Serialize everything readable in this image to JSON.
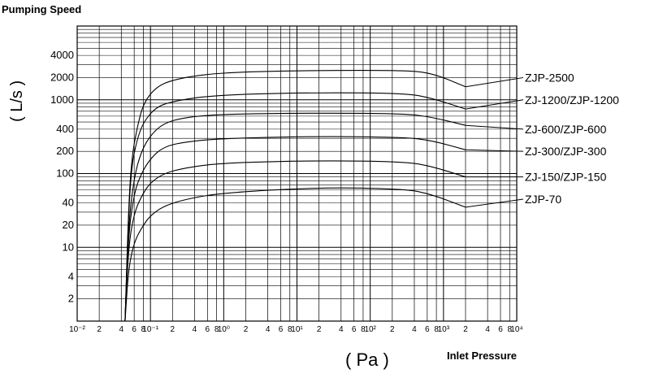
{
  "chart_data": {
    "type": "line",
    "title": "Pumping Speed",
    "ylabel": "( L/s )",
    "xlabel_unit": "( Pa )",
    "xlabel": "Inlet Pressure",
    "xscale": "log",
    "yscale": "log",
    "xlim": [
      0.01,
      10000
    ],
    "ylim": [
      1,
      10000
    ],
    "grid": true,
    "y_ticks": [
      {
        "value": 2,
        "label": "2"
      },
      {
        "value": 4,
        "label": "4"
      },
      {
        "value": 10,
        "label": "10"
      },
      {
        "value": 20,
        "label": "20"
      },
      {
        "value": 40,
        "label": "40"
      },
      {
        "value": 100,
        "label": "100"
      },
      {
        "value": 200,
        "label": "200"
      },
      {
        "value": 400,
        "label": "400"
      },
      {
        "value": 1000,
        "label": "1000"
      },
      {
        "value": 2000,
        "label": "2000"
      },
      {
        "value": 4000,
        "label": "4000"
      }
    ],
    "x_ticks": [
      {
        "value": 0.01,
        "label": "10⁻²"
      },
      {
        "value": 0.02,
        "label": "2"
      },
      {
        "value": 0.04,
        "label": "4"
      },
      {
        "value": 0.06,
        "label": "6"
      },
      {
        "value": 0.08,
        "label": "8"
      },
      {
        "value": 0.1,
        "label": "10⁻¹"
      },
      {
        "value": 0.2,
        "label": "2"
      },
      {
        "value": 0.4,
        "label": "4"
      },
      {
        "value": 0.6,
        "label": "6"
      },
      {
        "value": 0.8,
        "label": "8"
      },
      {
        "value": 1,
        "label": "10⁰"
      },
      {
        "value": 2,
        "label": "2"
      },
      {
        "value": 4,
        "label": "4"
      },
      {
        "value": 6,
        "label": "6"
      },
      {
        "value": 8,
        "label": "8"
      },
      {
        "value": 10,
        "label": "10¹"
      },
      {
        "value": 20,
        "label": "2"
      },
      {
        "value": 40,
        "label": "4"
      },
      {
        "value": 60,
        "label": "6"
      },
      {
        "value": 80,
        "label": "8"
      },
      {
        "value": 100,
        "label": "10²"
      },
      {
        "value": 200,
        "label": "2"
      },
      {
        "value": 400,
        "label": "4"
      },
      {
        "value": 600,
        "label": "6"
      },
      {
        "value": 800,
        "label": "8"
      },
      {
        "value": 1000,
        "label": "10³"
      },
      {
        "value": 2000,
        "label": "2"
      },
      {
        "value": 4000,
        "label": "4"
      },
      {
        "value": 6000,
        "label": "6"
      },
      {
        "value": 8000,
        "label": "8"
      },
      {
        "value": 10000,
        "label": "10⁴"
      }
    ],
    "series": [
      {
        "name": "ZJP-2500",
        "label_y": 2000,
        "points": [
          [
            0.045,
            1
          ],
          [
            0.05,
            30
          ],
          [
            0.055,
            150
          ],
          [
            0.065,
            400
          ],
          [
            0.08,
            900
          ],
          [
            0.12,
            1500
          ],
          [
            0.2,
            1850
          ],
          [
            0.5,
            2200
          ],
          [
            2,
            2400
          ],
          [
            20,
            2500
          ],
          [
            300,
            2500
          ],
          [
            700,
            2300
          ],
          [
            2000,
            1500
          ]
        ]
      },
      {
        "name": "ZJ-1200/ZJP-1200",
        "label_y": 1000,
        "points": [
          [
            0.045,
            1
          ],
          [
            0.05,
            25
          ],
          [
            0.055,
            120
          ],
          [
            0.065,
            280
          ],
          [
            0.08,
            500
          ],
          [
            0.12,
            800
          ],
          [
            0.2,
            950
          ],
          [
            0.5,
            1100
          ],
          [
            2,
            1200
          ],
          [
            20,
            1250
          ],
          [
            300,
            1230
          ],
          [
            700,
            1050
          ],
          [
            2000,
            750
          ]
        ]
      },
      {
        "name": "ZJ-600/ZJP-600",
        "label_y": 400,
        "points": [
          [
            0.045,
            1
          ],
          [
            0.05,
            20
          ],
          [
            0.06,
            90
          ],
          [
            0.075,
            200
          ],
          [
            0.1,
            330
          ],
          [
            0.15,
            480
          ],
          [
            0.3,
            580
          ],
          [
            1,
            640
          ],
          [
            20,
            660
          ],
          [
            300,
            650
          ],
          [
            700,
            580
          ],
          [
            2000,
            450
          ]
        ]
      },
      {
        "name": "ZJ-300/ZJP-300",
        "label_y": 200,
        "points": [
          [
            0.045,
            1
          ],
          [
            0.05,
            15
          ],
          [
            0.06,
            55
          ],
          [
            0.075,
            100
          ],
          [
            0.1,
            160
          ],
          [
            0.15,
            230
          ],
          [
            0.3,
            270
          ],
          [
            1,
            300
          ],
          [
            20,
            320
          ],
          [
            300,
            310
          ],
          [
            700,
            280
          ],
          [
            2000,
            210
          ]
        ]
      },
      {
        "name": "ZJ-150/ZJP-150",
        "label_y": 90,
        "points": [
          [
            0.045,
            1
          ],
          [
            0.05,
            10
          ],
          [
            0.06,
            30
          ],
          [
            0.08,
            55
          ],
          [
            0.1,
            75
          ],
          [
            0.15,
            100
          ],
          [
            0.3,
            120
          ],
          [
            1,
            140
          ],
          [
            20,
            150
          ],
          [
            300,
            145
          ],
          [
            700,
            125
          ],
          [
            2000,
            90
          ]
        ]
      },
      {
        "name": "ZJP-70",
        "label_y": 45,
        "points": [
          [
            0.045,
            1
          ],
          [
            0.05,
            5
          ],
          [
            0.06,
            12
          ],
          [
            0.08,
            20
          ],
          [
            0.1,
            27
          ],
          [
            0.15,
            36
          ],
          [
            0.3,
            45
          ],
          [
            1,
            55
          ],
          [
            20,
            65
          ],
          [
            300,
            62
          ],
          [
            700,
            52
          ],
          [
            2000,
            35
          ]
        ]
      }
    ]
  }
}
